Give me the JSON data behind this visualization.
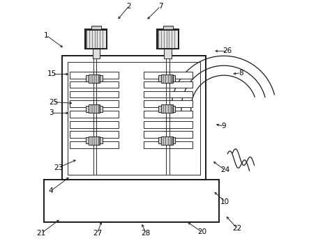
{
  "bg_color": "#ffffff",
  "line_color": "#1a1a1a",
  "gray_color": "#aaaaaa",
  "figsize": [
    4.43,
    3.49
  ],
  "dpi": 100,
  "labels": [
    [
      1,
      0.055,
      0.855,
      0.13,
      0.8
    ],
    [
      2,
      0.395,
      0.975,
      0.345,
      0.915
    ],
    [
      3,
      0.075,
      0.535,
      0.155,
      0.535
    ],
    [
      4,
      0.075,
      0.215,
      0.155,
      0.275
    ],
    [
      7,
      0.525,
      0.975,
      0.465,
      0.915
    ],
    [
      8,
      0.855,
      0.7,
      0.815,
      0.695
    ],
    [
      9,
      0.785,
      0.48,
      0.745,
      0.49
    ],
    [
      10,
      0.79,
      0.17,
      0.74,
      0.215
    ],
    [
      15,
      0.08,
      0.695,
      0.155,
      0.695
    ],
    [
      20,
      0.695,
      0.045,
      0.63,
      0.09
    ],
    [
      21,
      0.035,
      0.04,
      0.115,
      0.1
    ],
    [
      22,
      0.84,
      0.06,
      0.79,
      0.115
    ],
    [
      23,
      0.105,
      0.31,
      0.185,
      0.345
    ],
    [
      24,
      0.79,
      0.3,
      0.735,
      0.34
    ],
    [
      25,
      0.085,
      0.58,
      0.17,
      0.575
    ],
    [
      26,
      0.8,
      0.79,
      0.74,
      0.79
    ],
    [
      27,
      0.265,
      0.04,
      0.285,
      0.095
    ],
    [
      28,
      0.465,
      0.04,
      0.445,
      0.085
    ]
  ]
}
